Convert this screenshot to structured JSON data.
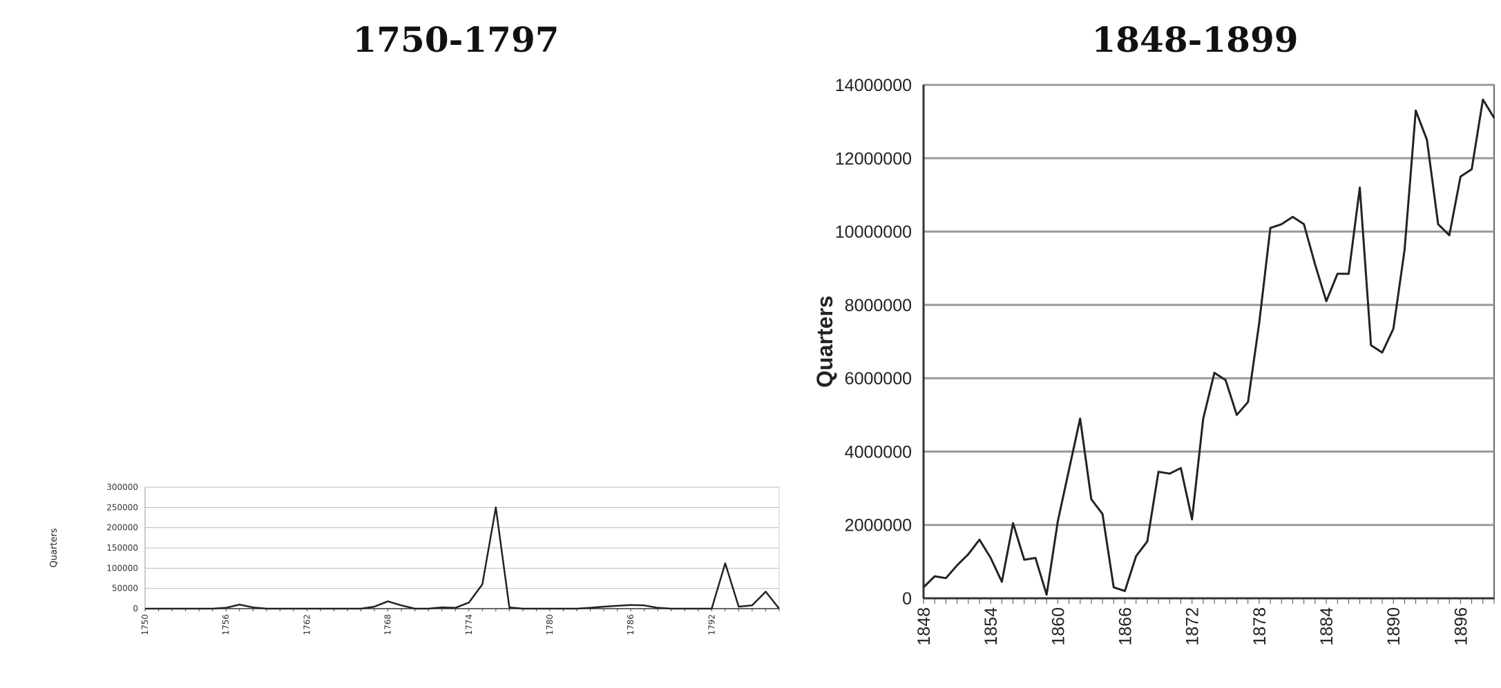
{
  "chart_data": [
    {
      "type": "line",
      "title": "1750-1797",
      "ylabel": "Quarters",
      "xlabel": "",
      "ylim": [
        0,
        300000
      ],
      "yticks": [
        0,
        50000,
        100000,
        150000,
        200000,
        250000,
        300000
      ],
      "ytick_labels": [
        "0",
        "50000",
        "100000",
        "150000",
        "200000",
        "250000",
        "300000"
      ],
      "xlim": [
        1750,
        1797
      ],
      "xticks": [
        1750,
        1756,
        1762,
        1768,
        1774,
        1780,
        1786,
        1792
      ],
      "xtick_labels": [
        "1750",
        "1756",
        "1762",
        "1768",
        "1774",
        "1780",
        "1786",
        "1792"
      ],
      "grid": true,
      "series": [
        {
          "x": [
            1750,
            1751,
            1752,
            1753,
            1754,
            1755,
            1756,
            1757,
            1758,
            1759,
            1760,
            1761,
            1762,
            1763,
            1764,
            1765,
            1766,
            1767,
            1768,
            1769,
            1770,
            1771,
            1772,
            1773,
            1774,
            1775,
            1776,
            1777,
            1778,
            1779,
            1780,
            1781,
            1782,
            1783,
            1784,
            1785,
            1786,
            1787,
            1788,
            1789,
            1790,
            1791,
            1792,
            1793,
            1794,
            1795,
            1796,
            1797
          ],
          "values": [
            0,
            0,
            0,
            0,
            0,
            0,
            2000,
            10000,
            3000,
            0,
            0,
            0,
            0,
            0,
            0,
            0,
            0,
            5000,
            18000,
            8000,
            0,
            0,
            3000,
            2000,
            15000,
            60000,
            250000,
            3000,
            0,
            0,
            0,
            0,
            0,
            2000,
            5000,
            7000,
            9000,
            8000,
            2000,
            0,
            0,
            0,
            0,
            112000,
            5000,
            8000,
            42000,
            0
          ]
        }
      ]
    },
    {
      "type": "line",
      "title": "1848-1899",
      "ylabel": "Quarters",
      "xlabel": "",
      "ylim": [
        0,
        14000000
      ],
      "yticks": [
        0,
        2000000,
        4000000,
        6000000,
        8000000,
        10000000,
        12000000,
        14000000
      ],
      "ytick_labels": [
        "0",
        "2000000",
        "4000000",
        "6000000",
        "8000000",
        "10000000",
        "12000000",
        "14000000"
      ],
      "xlim": [
        1848,
        1899
      ],
      "xticks": [
        1848,
        1854,
        1860,
        1866,
        1872,
        1878,
        1884,
        1890,
        1896
      ],
      "xtick_labels": [
        "1848",
        "1854",
        "1860",
        "1866",
        "1872",
        "1878",
        "1884",
        "1890",
        "1896"
      ],
      "grid": true,
      "series": [
        {
          "x": [
            1848,
            1849,
            1850,
            1851,
            1852,
            1853,
            1854,
            1855,
            1856,
            1857,
            1858,
            1859,
            1860,
            1861,
            1862,
            1863,
            1864,
            1865,
            1866,
            1867,
            1868,
            1869,
            1870,
            1871,
            1872,
            1873,
            1874,
            1875,
            1876,
            1877,
            1878,
            1879,
            1880,
            1881,
            1882,
            1883,
            1884,
            1885,
            1886,
            1887,
            1888,
            1889,
            1890,
            1891,
            1892,
            1893,
            1894,
            1895,
            1896,
            1897,
            1898,
            1899
          ],
          "values": [
            300000,
            600000,
            550000,
            900000,
            1200000,
            1600000,
            1100000,
            450000,
            2050000,
            1050000,
            1100000,
            100000,
            2100000,
            3500000,
            4900000,
            2700000,
            2300000,
            300000,
            200000,
            1150000,
            1550000,
            3450000,
            3400000,
            3550000,
            2150000,
            4900000,
            6150000,
            5950000,
            5000000,
            5350000,
            7500000,
            10100000,
            10200000,
            10400000,
            10200000,
            9100000,
            8100000,
            8850000,
            8850000,
            11200000,
            6900000,
            6700000,
            7350000,
            9500000,
            13300000,
            12500000,
            10200000,
            9900000,
            11500000,
            11700000,
            13600000,
            13100000
          ]
        }
      ]
    }
  ]
}
